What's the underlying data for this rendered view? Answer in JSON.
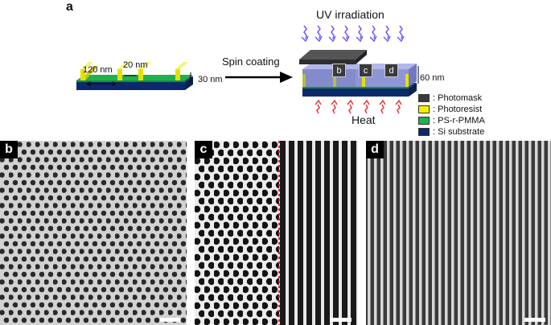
{
  "panel_a": {
    "label": "a",
    "dim_120": "120 nm",
    "dim_20": "20 nm",
    "dim_30": "30 nm",
    "dim_60": "60 nm",
    "spin_coating": "Spin coating",
    "uv": "UV irradiation",
    "heat": "Heat",
    "block_labels": [
      "b",
      "c",
      "d"
    ],
    "legend": [
      {
        "text": ": Photomask",
        "color": "#3a3a3a"
      },
      {
        "text": ": Photoresist",
        "color": "#f2f000"
      },
      {
        "text": ": PS-r-PMMA",
        "color": "#1db34a"
      },
      {
        "text": ": Si substrate",
        "color": "#0b2a6b"
      }
    ]
  },
  "panels": [
    {
      "label": "b"
    },
    {
      "label": "c"
    },
    {
      "label": "d"
    }
  ],
  "colors": {
    "uv_arrow": "#6b5cff",
    "heat_arrow": "#e03a3a",
    "boundary": "#e02a2a"
  }
}
